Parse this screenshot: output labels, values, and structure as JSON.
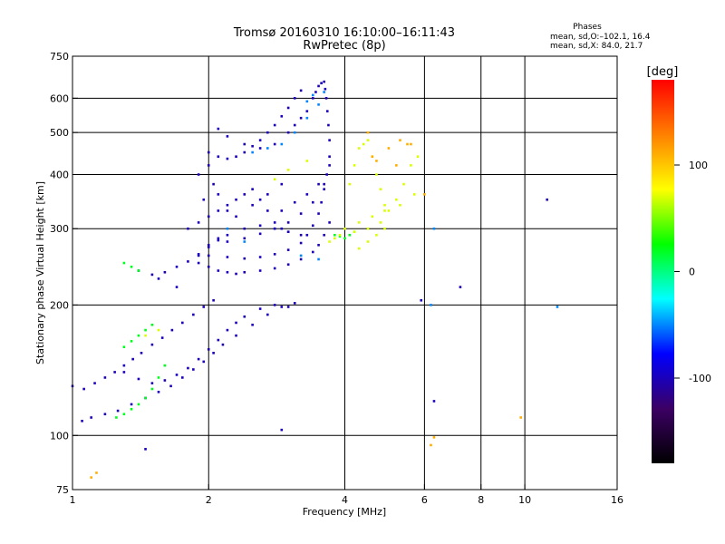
{
  "chart_data": {
    "type": "scatter",
    "title": "Tromsø 20160310 16:10:00–16:11:43",
    "subtitle": "RwPretec (8p)",
    "xlabel": "Frequency [MHz]",
    "ylabel": "Stationary phase Virtual Height [km]",
    "x_scale": "log2",
    "y_scale": "log",
    "xlim": [
      1,
      16
    ],
    "ylim": [
      75,
      750
    ],
    "x_ticks": [
      1,
      2,
      4,
      6,
      8,
      10,
      16
    ],
    "x_gridlines": [
      2,
      4,
      6,
      8,
      10
    ],
    "y_ticks": [
      75,
      100,
      200,
      300,
      400,
      500,
      600,
      750
    ],
    "y_gridlines": [
      100,
      200,
      300,
      400,
      500,
      600
    ],
    "grid": true,
    "info_title": "Phases",
    "info_lines": [
      "mean, sd,O:–102.1, 16.4",
      "mean, sd,X:  84.0, 21.7"
    ],
    "colorbar": {
      "label": "[deg]",
      "range": [
        -180,
        180
      ],
      "ticks": [
        100,
        0,
        -100
      ],
      "stops": [
        "#000000",
        "#3c0064",
        "#0000ff",
        "#00ffff",
        "#00ff00",
        "#ffff00",
        "#ff8000",
        "#ff0000"
      ]
    },
    "series": [
      {
        "phase_deg": -100,
        "x": [
          1.0,
          1.06,
          1.12,
          1.18,
          1.24,
          1.3,
          1.36,
          1.42,
          1.5,
          1.58,
          1.66,
          1.75,
          1.85,
          1.95,
          2.05,
          1.3,
          1.4,
          1.5,
          1.6,
          1.7,
          1.8,
          1.9,
          2.0,
          2.1,
          2.2,
          2.3,
          2.4,
          2.6,
          2.8,
          3.0,
          1.05,
          1.1,
          1.18,
          1.26,
          1.35,
          1.45,
          1.55,
          1.65,
          1.75,
          1.85,
          1.95,
          2.05,
          2.15,
          2.3,
          2.5,
          2.7,
          2.9,
          3.1,
          1.4,
          1.5,
          1.6,
          1.7,
          1.8,
          1.9,
          2.0,
          2.1,
          2.2,
          2.4,
          2.6,
          2.8,
          3.0,
          3.2,
          1.9,
          2.0,
          2.1,
          2.2,
          2.3,
          2.4,
          2.6,
          2.8,
          3.0,
          3.2,
          3.4,
          3.5,
          3.6,
          3.7,
          2.0,
          2.2,
          2.4,
          2.6,
          2.8,
          3.0,
          3.2,
          3.3,
          3.4,
          3.5,
          3.55,
          3.6,
          3.65,
          3.7,
          2.2,
          2.4,
          2.6,
          2.8,
          3.0,
          3.2,
          3.4,
          3.6,
          3.7,
          3.4,
          3.45,
          3.5,
          3.55,
          3.6,
          3.62,
          3.64,
          3.66,
          3.68,
          3.7,
          2.0,
          2.1,
          2.2,
          2.3,
          2.4,
          2.5,
          2.6,
          2.7,
          2.8,
          2.9,
          3.0,
          3.1,
          3.2,
          2.1,
          2.2,
          2.4,
          2.6,
          2.8,
          3.0,
          3.1,
          3.2,
          3.3,
          1.8,
          1.9,
          2.0,
          2.1,
          2.2,
          2.3,
          2.4,
          2.5,
          2.6,
          2.7,
          2.8,
          2.9,
          3.0,
          2.9,
          3.1,
          3.3,
          3.5,
          1.55,
          1.7,
          1.9,
          2.0,
          2.1,
          2.3,
          2.5,
          2.7,
          2.9,
          1.9,
          2.0,
          2.05,
          2.1,
          1.95,
          2.2,
          2.9,
          6.3,
          11.2,
          7.2,
          5.9,
          1.45
        ],
        "y": [
          130,
          128,
          132,
          136,
          140,
          145,
          150,
          155,
          162,
          168,
          175,
          182,
          190,
          198,
          205,
          140,
          135,
          132,
          134,
          138,
          143,
          150,
          158,
          166,
          175,
          182,
          188,
          196,
          200,
          198,
          108,
          110,
          112,
          114,
          118,
          122,
          126,
          130,
          136,
          142,
          148,
          155,
          162,
          170,
          180,
          190,
          198,
          202,
          240,
          235,
          238,
          245,
          252,
          262,
          272,
          282,
          290,
          300,
          305,
          300,
          295,
          290,
          250,
          245,
          240,
          238,
          236,
          238,
          240,
          243,
          248,
          255,
          265,
          275,
          290,
          310,
          260,
          258,
          256,
          258,
          262,
          268,
          278,
          290,
          305,
          325,
          345,
          370,
          400,
          440,
          280,
          285,
          292,
          300,
          310,
          325,
          345,
          380,
          420,
          600,
          620,
          640,
          650,
          655,
          630,
          600,
          560,
          520,
          480,
          450,
          440,
          435,
          440,
          450,
          465,
          480,
          500,
          520,
          545,
          570,
          600,
          625,
          510,
          490,
          470,
          460,
          470,
          500,
          520,
          540,
          560,
          300,
          310,
          320,
          330,
          340,
          350,
          360,
          370,
          350,
          330,
          310,
          300,
          295,
          330,
          345,
          360,
          380,
          230,
          220,
          260,
          275,
          285,
          320,
          340,
          360,
          380,
          400,
          420,
          380,
          360,
          350,
          330,
          103,
          120,
          350,
          220,
          205,
          93
        ]
      },
      {
        "phase_deg": -50,
        "x": [
          2.5,
          2.7,
          2.9,
          3.1,
          3.3,
          3.5,
          3.6,
          3.4,
          3.3,
          2.2,
          2.4,
          3.2,
          3.5,
          6.3,
          6.2,
          11.8
        ],
        "y": [
          450,
          460,
          470,
          500,
          540,
          580,
          620,
          610,
          590,
          300,
          280,
          260,
          255,
          300,
          200,
          198
        ]
      },
      {
        "phase_deg": 20,
        "x": [
          1.25,
          1.3,
          1.35,
          1.4,
          1.45,
          1.5,
          1.55,
          1.6,
          1.3,
          1.35,
          1.4,
          1.45,
          1.5,
          3.8,
          3.9,
          4.0,
          4.1,
          4.2,
          1.3,
          1.35,
          1.4
        ],
        "y": [
          110,
          112,
          115,
          118,
          122,
          128,
          136,
          145,
          160,
          165,
          170,
          175,
          180,
          290,
          288,
          285,
          290,
          295,
          250,
          245,
          240
        ]
      },
      {
        "phase_deg": 70,
        "x": [
          4.1,
          4.2,
          4.3,
          4.4,
          4.5,
          4.6,
          4.7,
          4.8,
          4.9,
          5.0,
          5.2,
          5.4,
          5.6,
          5.8,
          4.0,
          4.3,
          4.6,
          4.9,
          5.3,
          5.7,
          3.9,
          4.2,
          4.5,
          4.8,
          4.3,
          4.5,
          4.7,
          4.9,
          3.7,
          3.8,
          2.8,
          3.0,
          3.3,
          1.45,
          1.55
        ],
        "y": [
          380,
          420,
          460,
          470,
          480,
          440,
          400,
          370,
          340,
          330,
          350,
          380,
          420,
          440,
          300,
          310,
          320,
          330,
          340,
          360,
          290,
          295,
          300,
          310,
          270,
          280,
          290,
          300,
          280,
          285,
          390,
          410,
          430,
          170,
          175
        ]
      },
      {
        "phase_deg": 110,
        "x": [
          4.5,
          4.7,
          5.0,
          5.3,
          5.6,
          6.0,
          4.6,
          5.2,
          1.13,
          1.1,
          9.8,
          6.3,
          6.2,
          5.5
        ],
        "y": [
          500,
          430,
          460,
          480,
          470,
          360,
          440,
          420,
          82,
          80,
          110,
          99,
          95,
          470
        ]
      }
    ]
  }
}
